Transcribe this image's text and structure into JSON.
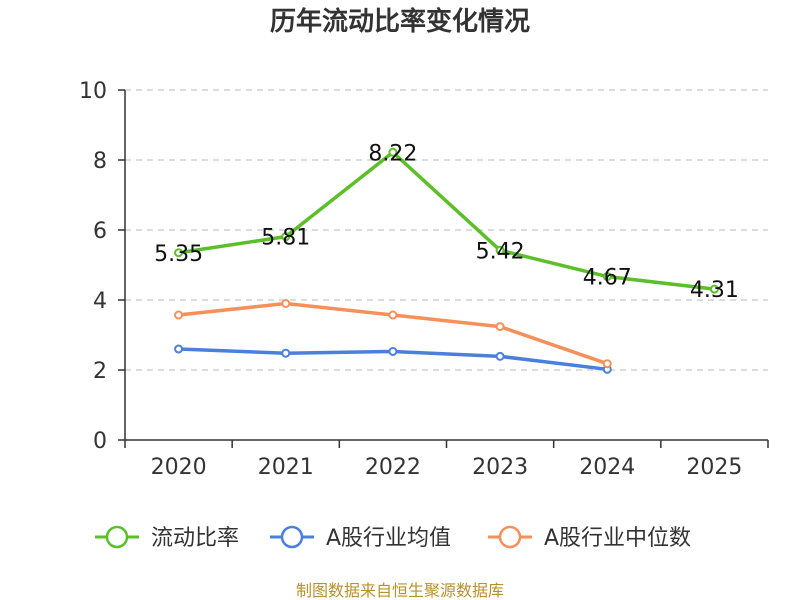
{
  "chart_data": {
    "type": "line",
    "title": "历年流动比率变化情况",
    "categories": [
      "2020",
      "2021",
      "2022",
      "2023",
      "2024",
      "2025"
    ],
    "ylim": [
      0,
      10
    ],
    "yticks": [
      "0",
      "2",
      "4",
      "6",
      "8",
      "10"
    ],
    "grid": true,
    "legend_position": "bottom",
    "series": [
      {
        "name": "流动比率",
        "color": "#5cbf2a",
        "values": [
          5.35,
          5.81,
          8.22,
          5.42,
          4.67,
          4.31
        ],
        "labels": [
          "5.35",
          "5.81",
          "8.22",
          "5.42",
          "4.67",
          "4.31"
        ]
      },
      {
        "name": "A股行业均值",
        "color": "#4a7fdc",
        "values": [
          2.6,
          2.48,
          2.53,
          2.39,
          2.02,
          null
        ]
      },
      {
        "name": "A股行业中位数",
        "color": "#f5905a",
        "values": [
          3.57,
          3.9,
          3.57,
          3.24,
          2.18,
          null
        ]
      }
    ],
    "source": "制图数据来自恒生聚源数据库"
  }
}
